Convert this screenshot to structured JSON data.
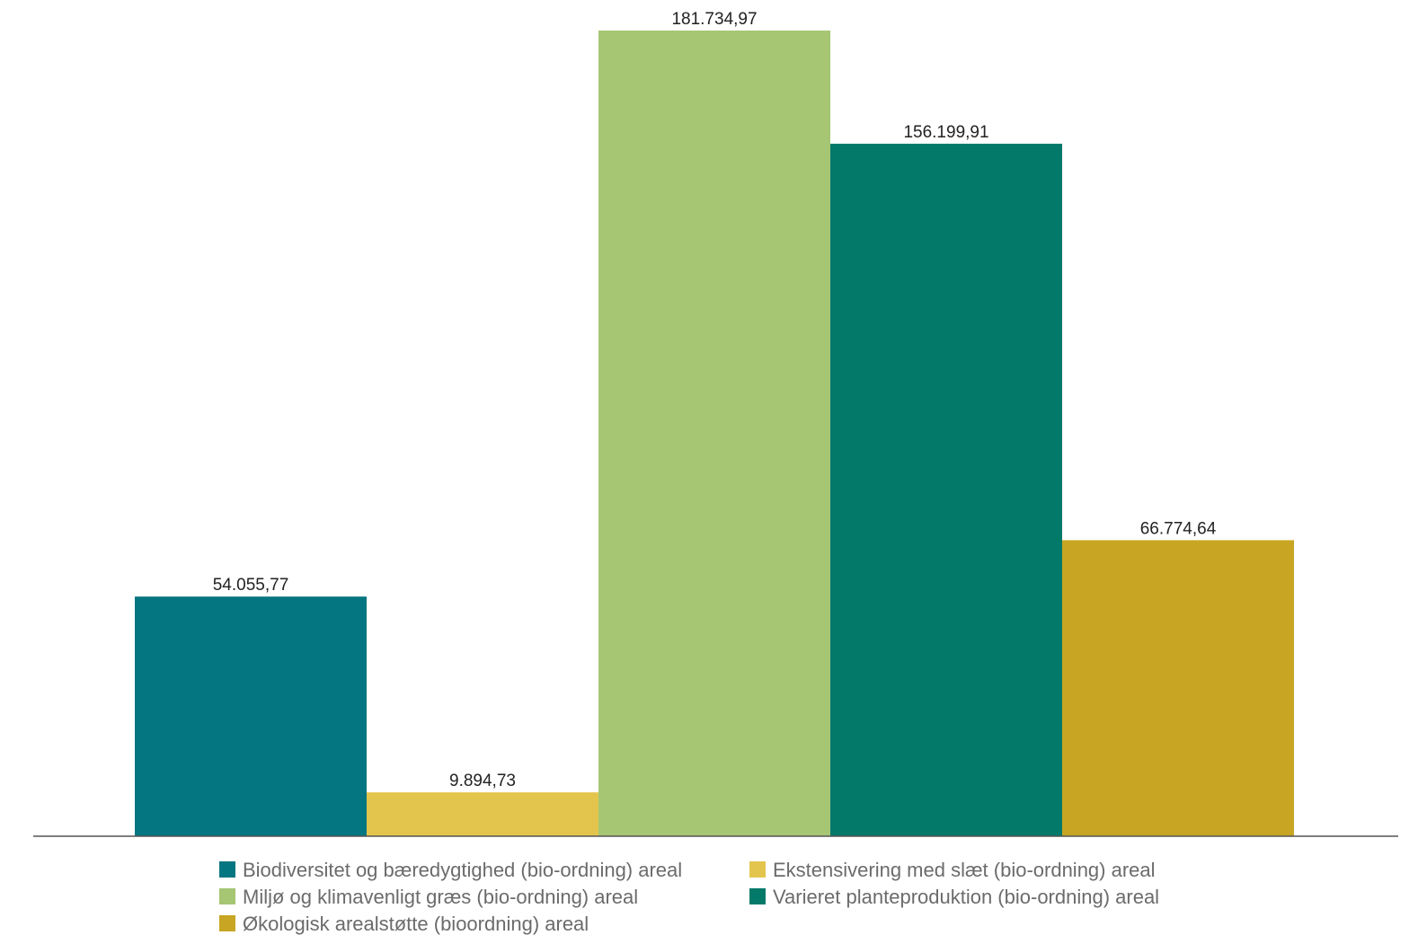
{
  "chart_data": {
    "type": "bar",
    "title": "",
    "xlabel": "",
    "ylabel": "",
    "ylim": [
      0,
      185000
    ],
    "grid": false,
    "legend_position": "bottom",
    "series": [
      {
        "name": "Biodiversitet og bæredygtighed (bio-ordning) areal",
        "value": 54055.77,
        "label": "54.055,77",
        "color": "#037681"
      },
      {
        "name": "Ekstensivering med slæt (bio-ordning) areal",
        "value": 9894.73,
        "label": "9.894,73",
        "color": "#e3c54d"
      },
      {
        "name": "Miljø og klimavenligt græs (bio-ordning) areal",
        "value": 181734.97,
        "label": "181.734,97",
        "color": "#a6c673"
      },
      {
        "name": "Varieret planteproduktion (bio-ordning) areal",
        "value": 156199.91,
        "label": "156.199,91",
        "color": "#03796a"
      },
      {
        "name": "Økologisk arealstøtte (bioordning) areal",
        "value": 66774.64,
        "label": "66.774,64",
        "color": "#c8a522"
      }
    ]
  }
}
